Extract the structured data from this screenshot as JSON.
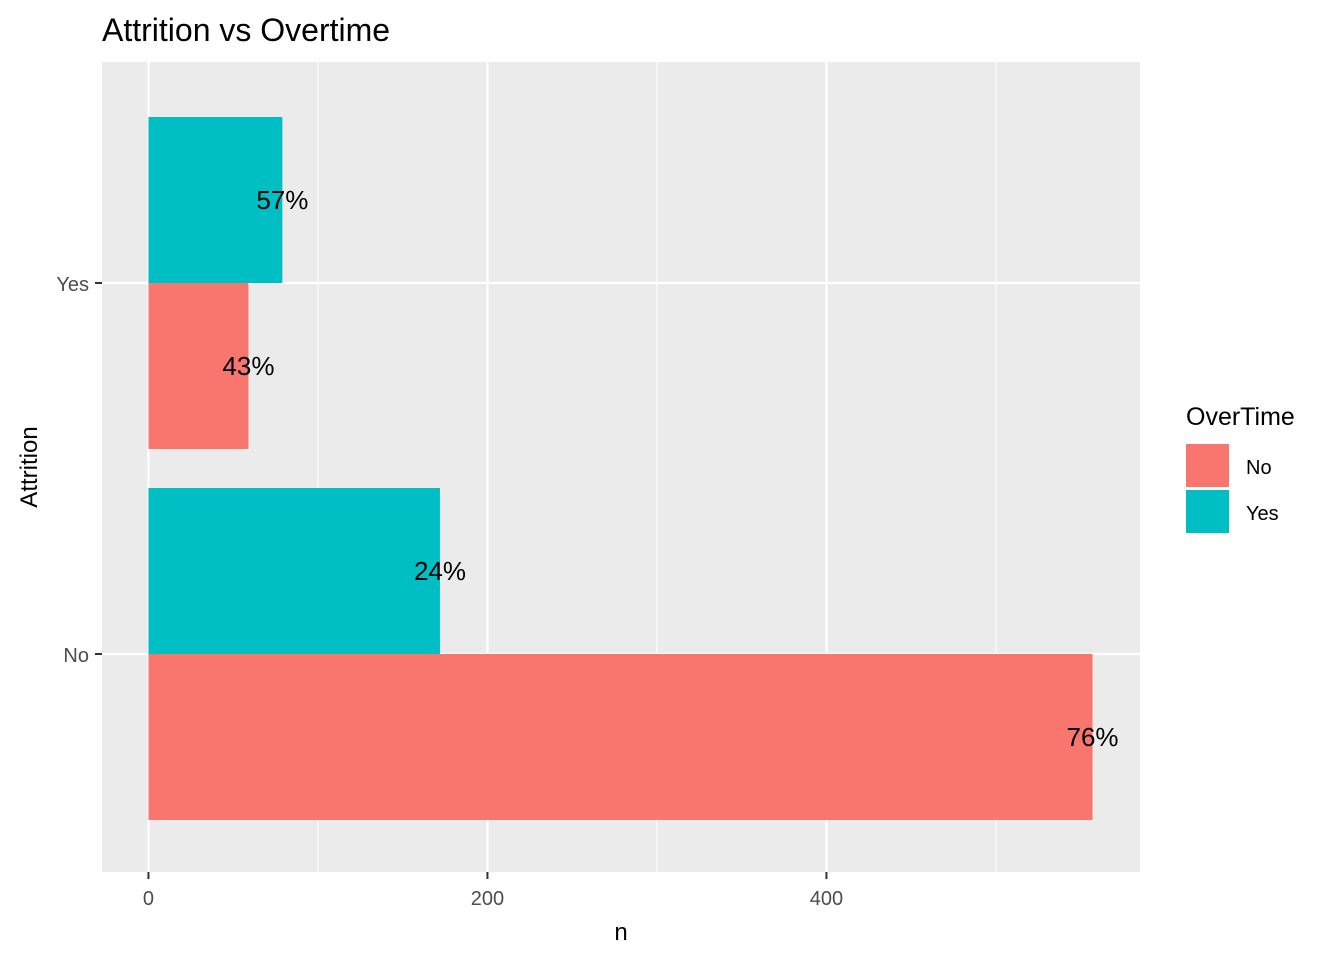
{
  "chart_data": {
    "type": "bar",
    "orientation": "horizontal",
    "title": "Attrition vs Overtime",
    "xlabel": "n",
    "ylabel": "Attrition",
    "categories": [
      "No",
      "Yes"
    ],
    "series": [
      {
        "name": "No",
        "color": "#F8766D",
        "values": [
          557,
          59
        ],
        "labels": [
          "76%",
          "43%"
        ]
      },
      {
        "name": "Yes",
        "color": "#00BFC4",
        "values": [
          172,
          79
        ],
        "labels": [
          "24%",
          "57%"
        ]
      }
    ],
    "x_ticks": [
      "0",
      "200",
      "400"
    ],
    "x_tick_values": [
      0,
      200,
      400
    ],
    "xlim": [
      -27.4,
      585
    ],
    "grid": true,
    "legend": {
      "title": "OverTime",
      "placement": "right",
      "entries": [
        "No",
        "Yes"
      ]
    }
  }
}
